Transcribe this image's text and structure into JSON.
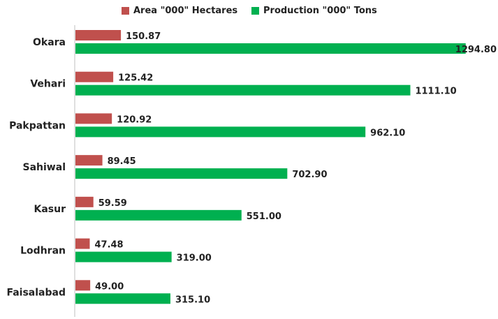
{
  "chart_data": {
    "type": "bar",
    "orientation": "horizontal",
    "categories": [
      "Okara",
      "Vehari",
      "Pakpattan",
      "Sahiwal",
      "Kasur",
      "Lodhran",
      "Faisalabad"
    ],
    "series": [
      {
        "name": "Area \"000\" Hectares",
        "color": "#c0504d",
        "values": [
          150.87,
          125.42,
          120.92,
          89.45,
          59.59,
          47.48,
          49.0
        ],
        "labels": [
          "150.87",
          "125.42",
          "120.92",
          "89.45",
          "59.59",
          "47.48",
          "49.00"
        ]
      },
      {
        "name": "Production \"000\" Tons",
        "color": "#00b050",
        "values": [
          1294.8,
          1111.1,
          962.1,
          702.9,
          551.0,
          319.0,
          315.1
        ],
        "labels": [
          "1294.80",
          "1111.10",
          "962.10",
          "702.90",
          "551.00",
          "319.00",
          "315.10"
        ]
      }
    ],
    "title": "",
    "xlabel": "",
    "ylabel": "",
    "xlim": [
      0,
      1300
    ],
    "grid": false,
    "legend_position": "top"
  }
}
